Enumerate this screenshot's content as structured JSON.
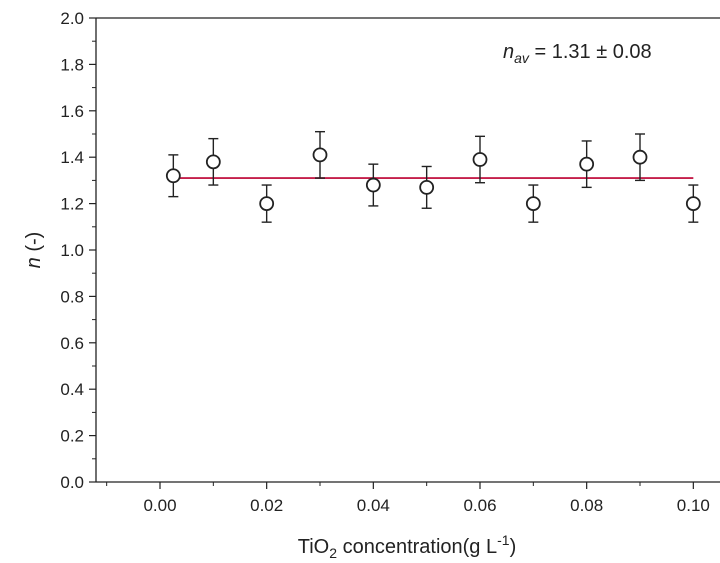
{
  "chart_data": {
    "type": "scatter",
    "xlabel": {
      "main": "TiO",
      "sub": "2",
      "rest": " concentration(g L",
      "sup": "-1",
      "close": ")"
    },
    "ylabel": {
      "italic": "n",
      "rest": " (-)"
    },
    "xlim": [
      -0.012,
      0.102
    ],
    "ylim": [
      0.0,
      2.0
    ],
    "x_ticks": [
      0.0,
      0.02,
      0.04,
      0.06,
      0.08,
      0.1
    ],
    "x_tick_labels": [
      "0.00",
      "0.02",
      "0.04",
      "0.06",
      "0.08",
      "0.10"
    ],
    "y_ticks": [
      0.0,
      0.2,
      0.4,
      0.6,
      0.8,
      1.0,
      1.2,
      1.4,
      1.6,
      1.8,
      2.0
    ],
    "y_tick_labels": [
      "0.0",
      "0.2",
      "0.4",
      "0.6",
      "0.8",
      "1.0",
      "1.2",
      "1.4",
      "1.6",
      "1.8",
      "2.0"
    ],
    "x_minor_step": 0.01,
    "y_minor_step": 0.1,
    "grid": false,
    "series": [
      {
        "marker": "open-circle",
        "x": [
          0.0025,
          0.01,
          0.02,
          0.03,
          0.04,
          0.05,
          0.06,
          0.07,
          0.08,
          0.09,
          0.1
        ],
        "y": [
          1.32,
          1.38,
          1.2,
          1.41,
          1.28,
          1.27,
          1.39,
          1.2,
          1.37,
          1.4,
          1.2
        ],
        "yerr": [
          0.09,
          0.1,
          0.08,
          0.1,
          0.09,
          0.09,
          0.1,
          0.08,
          0.1,
          0.1,
          0.08
        ]
      }
    ],
    "average_line": {
      "y": 1.31,
      "x_range": [
        0.0025,
        0.1
      ],
      "color": "#c41e4a"
    },
    "annotation": {
      "italic": "n",
      "sub": "av",
      "rest": " = 1.31 ± 0.08"
    }
  }
}
